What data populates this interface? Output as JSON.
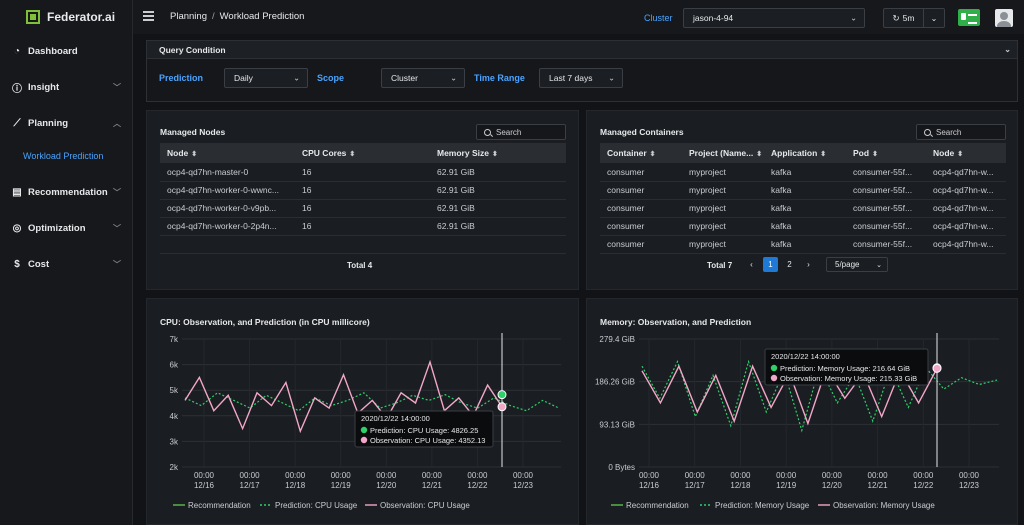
{
  "brand": {
    "name": "Federator.ai"
  },
  "sidebar": {
    "items": [
      {
        "label": "Dashboard",
        "icon": "gauge-icon"
      },
      {
        "label": "Insight",
        "icon": "info-icon"
      },
      {
        "label": "Planning",
        "icon": "line-chart-icon"
      },
      {
        "label": "Recommendation",
        "icon": "server-icon"
      },
      {
        "label": "Optimization",
        "icon": "target-icon"
      },
      {
        "label": "Cost",
        "icon": "dollar-icon"
      }
    ],
    "sub_item": "Workload Prediction"
  },
  "header": {
    "breadcrumb": [
      "Planning",
      "Workload Prediction"
    ],
    "cluster_label": "Cluster",
    "cluster_value": "jason-4-94",
    "refresh_value": "5m"
  },
  "query": {
    "title": "Query Condition",
    "prediction_label": "Prediction",
    "prediction_value": "Daily",
    "scope_label": "Scope",
    "scope_value": "Cluster",
    "range_label": "Time Range",
    "range_value": "Last 7 days"
  },
  "nodes": {
    "title": "Managed Nodes",
    "search_placeholder": "Search",
    "columns": [
      "Node",
      "CPU Cores",
      "Memory Size"
    ],
    "rows": [
      [
        "ocp4-qd7hn-master-0",
        "16",
        "62.91 GiB"
      ],
      [
        "ocp4-qd7hn-worker-0-wwnc...",
        "16",
        "62.91 GiB"
      ],
      [
        "ocp4-qd7hn-worker-0-v9pb...",
        "16",
        "62.91 GiB"
      ],
      [
        "ocp4-qd7hn-worker-0-2p4n...",
        "16",
        "62.91 GiB"
      ]
    ],
    "total": "Total 4"
  },
  "containers": {
    "title": "Managed Containers",
    "search_placeholder": "Search",
    "columns": [
      "Container",
      "Project (Name...",
      "Application",
      "Pod",
      "Node"
    ],
    "rows": [
      [
        "consumer",
        "myproject",
        "kafka",
        "consumer-55f...",
        "ocp4-qd7hn-w..."
      ],
      [
        "consumer",
        "myproject",
        "kafka",
        "consumer-55f...",
        "ocp4-qd7hn-w..."
      ],
      [
        "consumer",
        "myproject",
        "kafka",
        "consumer-55f...",
        "ocp4-qd7hn-w..."
      ],
      [
        "consumer",
        "myproject",
        "kafka",
        "consumer-55f...",
        "ocp4-qd7hn-w..."
      ],
      [
        "consumer",
        "myproject",
        "kafka",
        "consumer-55f...",
        "ocp4-qd7hn-w..."
      ]
    ],
    "total": "Total 7",
    "pages": [
      "1",
      "2"
    ],
    "page_size": "5/page"
  },
  "colors": {
    "accent": "#4aa3ff",
    "prediction": "#2fd06a",
    "observation": "#f2a7c8",
    "recommendation": "#5cbf4a"
  },
  "chart_data": [
    {
      "type": "line",
      "title": "CPU: Observation, and Prediction (in CPU millicore)",
      "x_ticks": [
        "00:00\n12/16",
        "00:00\n12/17",
        "00:00\n12/18",
        "00:00\n12/19",
        "00:00\n12/20",
        "00:00\n12/21",
        "00:00\n12/22",
        "00:00\n12/23"
      ],
      "y_ticks": [
        "7k",
        "6k",
        "5k",
        "4k",
        "3k",
        "2k"
      ],
      "ylim": [
        2000,
        7000
      ],
      "series": [
        {
          "name": "Recommendation",
          "style": "solid",
          "values": []
        },
        {
          "name": "Prediction: CPU Usage",
          "style": "dotted",
          "values": [
            4700,
            4400,
            4900,
            4600,
            4300,
            4800,
            4500,
            4200,
            4700,
            4400,
            4600,
            4900,
            4300,
            4500,
            4800,
            4600,
            4826,
            4500,
            4300,
            4700,
            4400,
            4200,
            4600,
            4300
          ]
        },
        {
          "name": "Observation: CPU Usage",
          "style": "solid",
          "values": [
            4600,
            5500,
            4200,
            4800,
            3500,
            4900,
            4400,
            5300,
            3400,
            4700,
            4300,
            5600,
            4100,
            4600,
            3900,
            4900,
            4500,
            6100,
            4200,
            4700,
            4000,
            5200,
            4352
          ]
        }
      ],
      "tooltip": {
        "time": "2020/12/22 14:00:00",
        "prediction": "Prediction: CPU Usage: 4826.25",
        "observation": "Observation: CPU Usage: 4352.13"
      },
      "legend": [
        "Recommendation",
        "Prediction: CPU Usage",
        "Observation: CPU Usage"
      ]
    },
    {
      "type": "line",
      "title": "Memory: Observation, and Prediction",
      "x_ticks": [
        "00:00\n12/16",
        "00:00\n12/17",
        "00:00\n12/18",
        "00:00\n12/19",
        "00:00\n12/20",
        "00:00\n12/21",
        "00:00\n12/22",
        "00:00\n12/23"
      ],
      "y_ticks": [
        "279.4 GiB",
        "186.26 GiB",
        "93.13 GiB",
        "0 Bytes"
      ],
      "ylim": [
        0,
        279.4
      ],
      "series": [
        {
          "name": "Recommendation",
          "style": "solid",
          "values": []
        },
        {
          "name": "Prediction: Memory Usage",
          "style": "dotted",
          "values": [
            220,
            150,
            230,
            110,
            200,
            90,
            230,
            120,
            210,
            80,
            220,
            140,
            200,
            100,
            215,
            130,
            216.64,
            170,
            195,
            180,
            190
          ]
        },
        {
          "name": "Observation: Memory Usage",
          "style": "solid",
          "values": [
            210,
            140,
            220,
            120,
            200,
            100,
            220,
            130,
            205,
            95,
            215,
            150,
            205,
            110,
            210,
            140,
            215.33
          ]
        }
      ],
      "tooltip": {
        "time": "2020/12/22 14:00:00",
        "prediction": "Prediction: Memory Usage: 216.64 GiB",
        "observation": "Observation: Memory Usage: 215.33 GiB"
      },
      "legend": [
        "Recommendation",
        "Prediction: Memory Usage",
        "Observation: Memory Usage"
      ]
    }
  ]
}
